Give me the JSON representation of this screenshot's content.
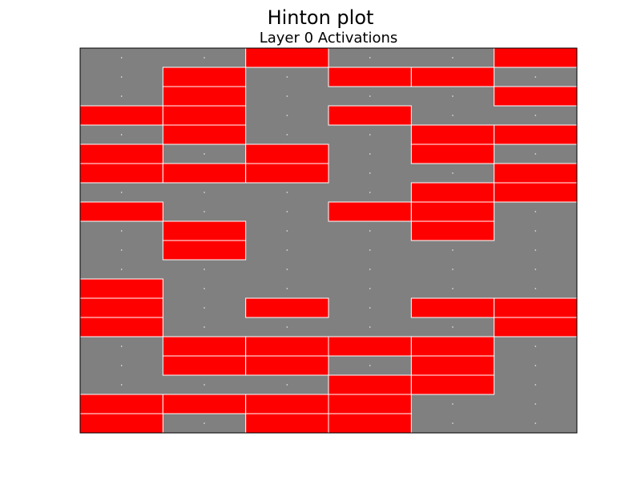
{
  "chart_data": {
    "type": "heatmap",
    "suptitle": "Hinton plot",
    "title": "Layer 0 Activations",
    "grid": false,
    "colors": {
      "background": "#808080",
      "active": "#ff0000",
      "edge": "#ffffff",
      "frame": "#000000"
    },
    "n_rows": 20,
    "n_cols": 6,
    "values": [
      [
        0,
        0,
        1,
        0,
        0,
        1
      ],
      [
        0,
        1,
        0,
        1,
        1,
        0
      ],
      [
        0,
        1,
        0,
        0,
        0,
        1
      ],
      [
        1,
        1,
        0,
        1,
        0,
        0
      ],
      [
        0,
        1,
        0,
        0,
        1,
        1
      ],
      [
        1,
        0,
        1,
        0,
        1,
        0
      ],
      [
        1,
        1,
        1,
        0,
        0,
        1
      ],
      [
        0,
        0,
        0,
        0,
        1,
        1
      ],
      [
        1,
        0,
        0,
        1,
        1,
        0
      ],
      [
        0,
        1,
        0,
        0,
        1,
        0
      ],
      [
        0,
        1,
        0,
        0,
        0,
        0
      ],
      [
        0,
        0,
        0,
        0,
        0,
        0
      ],
      [
        1,
        0,
        0,
        0,
        0,
        0
      ],
      [
        1,
        0,
        1,
        0,
        1,
        1
      ],
      [
        1,
        0,
        0,
        0,
        0,
        1
      ],
      [
        0,
        1,
        1,
        1,
        1,
        0
      ],
      [
        0,
        1,
        1,
        0,
        1,
        0
      ],
      [
        0,
        0,
        0,
        1,
        1,
        0
      ],
      [
        1,
        1,
        1,
        1,
        0,
        0
      ],
      [
        1,
        0,
        1,
        1,
        0,
        0
      ]
    ]
  }
}
